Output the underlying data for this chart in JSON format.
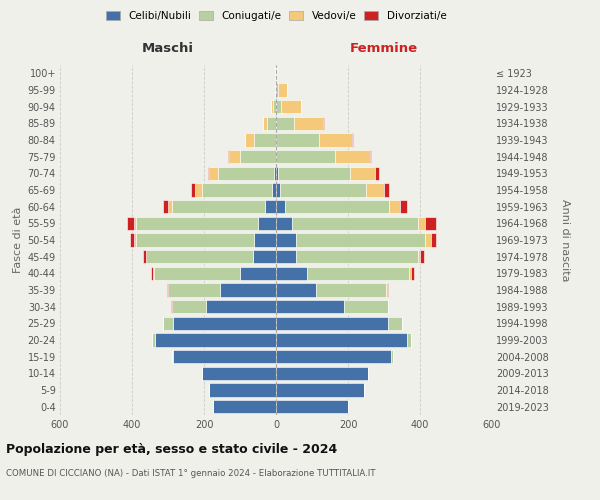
{
  "age_groups": [
    "0-4",
    "5-9",
    "10-14",
    "15-19",
    "20-24",
    "25-29",
    "30-34",
    "35-39",
    "40-44",
    "45-49",
    "50-54",
    "55-59",
    "60-64",
    "65-69",
    "70-74",
    "75-79",
    "80-84",
    "85-89",
    "90-94",
    "95-99",
    "100+"
  ],
  "birth_years": [
    "2019-2023",
    "2014-2018",
    "2009-2013",
    "2004-2008",
    "1999-2003",
    "1994-1998",
    "1989-1993",
    "1984-1988",
    "1979-1983",
    "1974-1978",
    "1969-1973",
    "1964-1968",
    "1959-1963",
    "1954-1958",
    "1949-1953",
    "1944-1948",
    "1939-1943",
    "1934-1938",
    "1929-1933",
    "1924-1928",
    "≤ 1923"
  ],
  "male": {
    "celibe": [
      175,
      185,
      205,
      285,
      335,
      285,
      195,
      155,
      100,
      65,
      60,
      50,
      30,
      10,
      5,
      0,
      0,
      0,
      0,
      0,
      0
    ],
    "coniugato": [
      0,
      0,
      0,
      5,
      10,
      30,
      95,
      145,
      240,
      295,
      330,
      340,
      260,
      195,
      155,
      100,
      60,
      25,
      8,
      2,
      2
    ],
    "vedovo": [
      0,
      0,
      0,
      0,
      0,
      0,
      0,
      0,
      2,
      2,
      5,
      5,
      10,
      20,
      25,
      30,
      25,
      10,
      5,
      0,
      0
    ],
    "divorziato": [
      0,
      0,
      0,
      0,
      0,
      0,
      2,
      3,
      5,
      8,
      10,
      20,
      15,
      10,
      5,
      3,
      0,
      0,
      0,
      0,
      0
    ]
  },
  "female": {
    "nubile": [
      200,
      245,
      255,
      320,
      365,
      310,
      190,
      110,
      85,
      55,
      55,
      45,
      25,
      10,
      5,
      0,
      0,
      0,
      0,
      0,
      0
    ],
    "coniugata": [
      0,
      0,
      0,
      5,
      10,
      40,
      120,
      195,
      285,
      340,
      360,
      350,
      290,
      240,
      200,
      165,
      120,
      50,
      15,
      5,
      0
    ],
    "vedova": [
      0,
      0,
      0,
      0,
      0,
      0,
      0,
      2,
      5,
      5,
      15,
      20,
      30,
      50,
      70,
      95,
      90,
      80,
      55,
      25,
      2
    ],
    "divorziata": [
      0,
      0,
      0,
      0,
      0,
      0,
      2,
      5,
      8,
      10,
      15,
      30,
      20,
      15,
      10,
      5,
      5,
      2,
      0,
      0,
      0
    ]
  },
  "colors": {
    "celibe_nubile": "#4472a8",
    "coniugato_a": "#b8cfa0",
    "vedovo_a": "#f5c97a",
    "divorziato_a": "#cc2222"
  },
  "title_main": "Popolazione per età, sesso e stato civile - 2024",
  "title_sub": "COMUNE DI CICCIANO (NA) - Dati ISTAT 1° gennaio 2024 - Elaborazione TUTTITALIA.IT",
  "xlabel_left": "Maschi",
  "xlabel_right": "Femmine",
  "ylabel_left": "Fasce di età",
  "ylabel_right": "Anni di nascita",
  "xlim": 600,
  "legend_labels": [
    "Celibi/Nubili",
    "Coniugati/e",
    "Vedovi/e",
    "Divorziati/e"
  ],
  "background_color": "#f0f0eb",
  "bar_edge_color": "white"
}
